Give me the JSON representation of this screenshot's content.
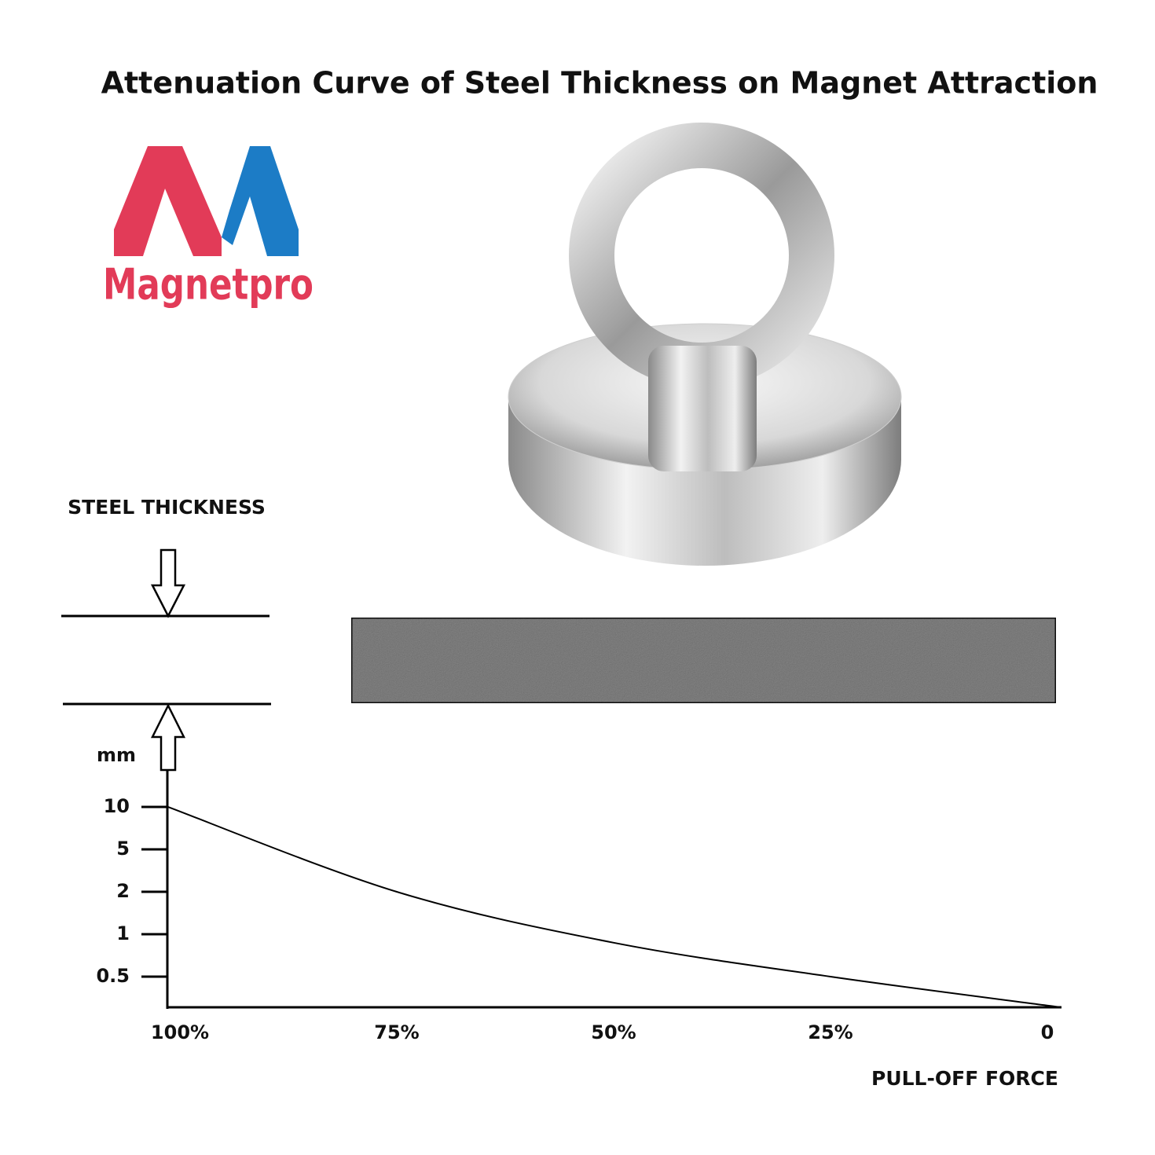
{
  "title": "Attenuation Curve of Steel Thickness on Magnet Attraction",
  "brand": "Magnetpro",
  "annotation": "STEEL THICKNESS",
  "chart_data": {
    "type": "line",
    "y_label": "mm",
    "x_label": "PULL-OFF FORCE",
    "categories": [
      "100%",
      "75%",
      "50%",
      "25%",
      "0"
    ],
    "series": [
      {
        "color": "#000000",
        "values": [
          10,
          2,
          0.9,
          0.5,
          0
        ]
      }
    ],
    "ylim": [
      0,
      10
    ],
    "yticks": [
      0.5,
      1,
      2,
      5,
      10
    ]
  }
}
